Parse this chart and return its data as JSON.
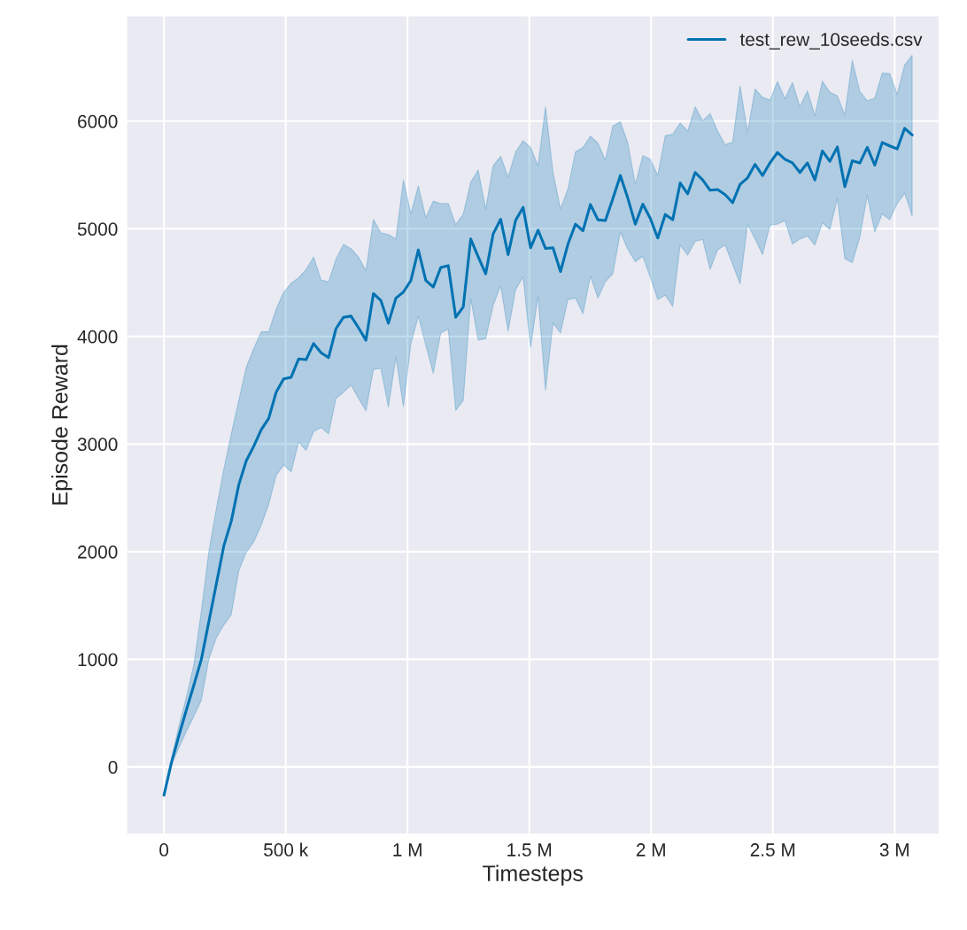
{
  "chart_data": {
    "type": "line",
    "xlabel": "Timesteps",
    "ylabel": "Episode Reward",
    "xlim": [
      -153000,
      3182000
    ],
    "ylim": [
      -625,
      6979
    ],
    "xticks": [
      0,
      {
        "value": 500000,
        "label": "500 k"
      },
      {
        "value": 1000000,
        "label": "1 M"
      },
      {
        "value": 1500000,
        "label": "1.5 M"
      },
      {
        "value": 2000000,
        "label": "2 M"
      },
      {
        "value": 2500000,
        "label": "2.5 M"
      },
      {
        "value": 3000000,
        "label": "3 M"
      }
    ],
    "yticks": [
      0,
      1000,
      2000,
      3000,
      4000,
      5000,
      6000
    ],
    "grid": true,
    "legend": "top right",
    "line_style": "solid",
    "x": [
      0,
      30720,
      61440,
      92160,
      122880,
      153600,
      184320,
      215040,
      245760,
      276480,
      307200,
      337920,
      368640,
      399360,
      430080,
      460800,
      491520,
      522240,
      552960,
      583680,
      614400,
      645120,
      675840,
      706560,
      737280,
      768000,
      798720,
      829440,
      860160,
      890880,
      921600,
      952320,
      983040,
      1013760,
      1044480,
      1075200,
      1105920,
      1136640,
      1167360,
      1198080,
      1228800,
      1259520,
      1290240,
      1320960,
      1351680,
      1382400,
      1413120,
      1443840,
      1474560,
      1505280,
      1536000,
      1566720,
      1597440,
      1628160,
      1658880,
      1689600,
      1720320,
      1751040,
      1781760,
      1812480,
      1843200,
      1873920,
      1904640,
      1935360,
      1966080,
      1996800,
      2027520,
      2058240,
      2088960,
      2119680,
      2150400,
      2181120,
      2211840,
      2242560,
      2273280,
      2304000,
      2334720,
      2365440,
      2396160,
      2426880,
      2457600,
      2488320,
      2519040,
      2549760,
      2580480,
      2611200,
      2641920,
      2672640,
      2703360,
      2734080,
      2764800,
      2795520,
      2826240,
      2856960,
      2887680,
      2918400,
      2949120,
      2979840,
      3010560,
      3041280,
      3072000
    ],
    "series": [
      {
        "name": "test_rew_10seeds.csv",
        "color": "#0072b2",
        "values": [
          -263,
          40,
          290,
          530,
          760,
          1000,
          1350,
          1700,
          2053,
          2284,
          2621,
          2844,
          2979,
          3134,
          3239,
          3482,
          3606,
          3621,
          3791,
          3784,
          3934,
          3849,
          3803,
          4073,
          4178,
          4189,
          4081,
          3965,
          4398,
          4333,
          4123,
          4356,
          4412,
          4519,
          4804,
          4521,
          4459,
          4640,
          4658,
          4178,
          4274,
          4905,
          4741,
          4582,
          4952,
          5089,
          4760,
          5078,
          5199,
          4823,
          4988,
          4817,
          4823,
          4603,
          4858,
          5043,
          4982,
          5226,
          5084,
          5076,
          5281,
          5495,
          5284,
          5043,
          5229,
          5097,
          4914,
          5133,
          5084,
          5426,
          5325,
          5523,
          5454,
          5358,
          5364,
          5317,
          5243,
          5413,
          5473,
          5599,
          5495,
          5613,
          5709,
          5646,
          5613,
          5523,
          5613,
          5454,
          5723,
          5627,
          5761,
          5391,
          5632,
          5611,
          5756,
          5591,
          5802,
          5770,
          5742,
          5934,
          5871
        ],
        "lower": [
          -263,
          20,
          180,
          330,
          470,
          623,
          1000,
          1200,
          1318,
          1415,
          1821,
          1994,
          2091,
          2246,
          2439,
          2709,
          2806,
          2741,
          3019,
          2942,
          3115,
          3154,
          3095,
          3424,
          3482,
          3548,
          3424,
          3309,
          3695,
          3702,
          3342,
          3808,
          3347,
          3932,
          4187,
          3918,
          3657,
          4033,
          4068,
          3314,
          3405,
          4351,
          3967,
          3978,
          4288,
          4472,
          4049,
          4434,
          4554,
          3896,
          4376,
          3500,
          4123,
          4033,
          4343,
          4356,
          4212,
          4562,
          4356,
          4508,
          4582,
          4969,
          4809,
          4694,
          4746,
          4549,
          4343,
          4384,
          4280,
          4850,
          4755,
          4883,
          4900,
          4623,
          4804,
          4850,
          4672,
          4488,
          5043,
          4905,
          4760,
          5035,
          5043,
          5076,
          4858,
          4905,
          4933,
          4850,
          5056,
          4993,
          5281,
          4722,
          4686,
          4919,
          5311,
          4969,
          5138,
          5084,
          5235,
          5331,
          5117
        ],
        "upper": [
          -263,
          80,
          380,
          650,
          950,
          1450,
          2000,
          2400,
          2767,
          3095,
          3405,
          3714,
          3888,
          4043,
          4043,
          4255,
          4410,
          4495,
          4545,
          4622,
          4738,
          4525,
          4506,
          4719,
          4854,
          4816,
          4738,
          4611,
          5086,
          4962,
          4947,
          4905,
          5454,
          5138,
          5399,
          5105,
          5257,
          5235,
          5235,
          5037,
          5138,
          5432,
          5545,
          5185,
          5586,
          5673,
          5481,
          5714,
          5819,
          5756,
          5586,
          6134,
          5523,
          5185,
          5372,
          5714,
          5756,
          5860,
          5797,
          5638,
          5956,
          5994,
          5797,
          5413,
          5679,
          5646,
          5495,
          5866,
          5879,
          5984,
          5907,
          6134,
          6003,
          6071,
          5907,
          5783,
          5805,
          6327,
          5899,
          6299,
          6222,
          6195,
          6368,
          6208,
          6360,
          6132,
          6282,
          6052,
          6373,
          6269,
          6236,
          6058,
          6565,
          6277,
          6189,
          6214,
          6447,
          6442,
          6250,
          6524,
          6612
        ]
      }
    ]
  }
}
